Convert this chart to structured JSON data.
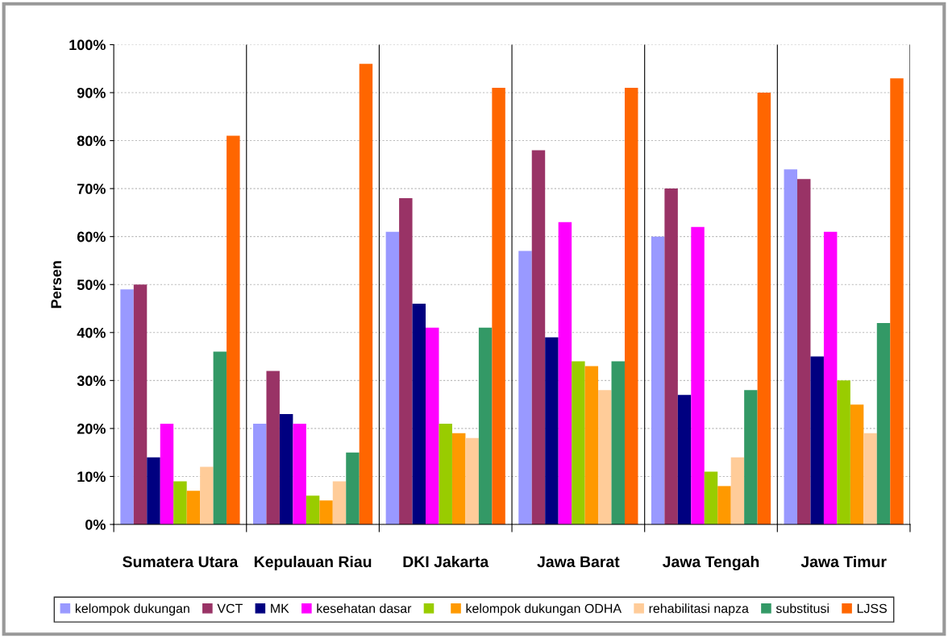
{
  "chart_data": {
    "type": "bar",
    "ylabel": "Persen",
    "categories": [
      "Sumatera Utara",
      "Kepulauan Riau",
      "DKI Jakarta",
      "Jawa Barat",
      "Jawa Tengah",
      "Jawa Timur"
    ],
    "series": [
      {
        "name": "kelompok dukungan",
        "color": "#9999ff",
        "values": [
          49,
          21,
          61,
          57,
          60,
          74
        ]
      },
      {
        "name": "VCT",
        "color": "#993366",
        "values": [
          50,
          32,
          68,
          78,
          70,
          72
        ]
      },
      {
        "name": "MK",
        "color": "#000080",
        "values": [
          14,
          23,
          46,
          39,
          27,
          35
        ]
      },
      {
        "name": "kesehatan dasar",
        "color": "#ff00ff",
        "values": [
          21,
          21,
          41,
          63,
          62,
          61
        ]
      },
      {
        "color": "#99cc00",
        "values": [
          9,
          6,
          21,
          34,
          11,
          30
        ]
      },
      {
        "name": "kelompok dukungan ODHA",
        "color": "#ff9900",
        "values": [
          7,
          5,
          19,
          33,
          8,
          25
        ]
      },
      {
        "name": "rehabilitasi napza",
        "color": "#ffcc99",
        "values": [
          12,
          9,
          18,
          28,
          14,
          19
        ]
      },
      {
        "name": "substitusi",
        "color": "#339966",
        "values": [
          36,
          15,
          41,
          34,
          28,
          42
        ]
      },
      {
        "name": "LJSS",
        "color": "#ff6600",
        "values": [
          81,
          96,
          91,
          91,
          90,
          93
        ]
      }
    ],
    "ylim": [
      0,
      100
    ],
    "yticks": [
      {
        "value": 0,
        "label": "0%"
      },
      {
        "value": 10,
        "label": "10%"
      },
      {
        "value": 20,
        "label": "20%"
      },
      {
        "value": 30,
        "label": "30%"
      },
      {
        "value": 40,
        "label": "40%"
      },
      {
        "value": 50,
        "label": "50%"
      },
      {
        "value": 60,
        "label": "60%"
      },
      {
        "value": 70,
        "label": "70%"
      },
      {
        "value": 80,
        "label": "80%"
      },
      {
        "value": 90,
        "label": "90%"
      },
      {
        "value": 100,
        "label": "100%"
      }
    ],
    "grid": true,
    "legend": "bottom"
  }
}
